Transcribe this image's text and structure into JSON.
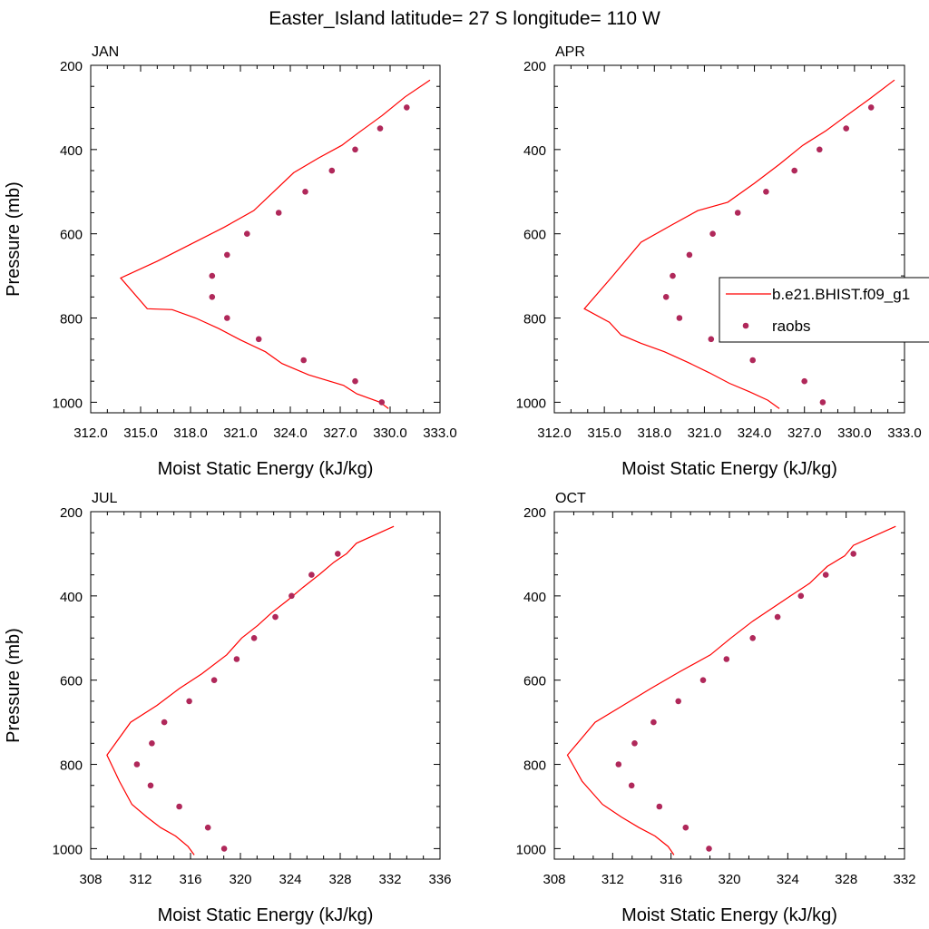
{
  "figure": {
    "title": "Easter_Island  latitude= 27 S longitude= 110 W"
  },
  "legend": {
    "model_label": "b.e21.BHIST.f09_g1",
    "obs_label": "raobs"
  },
  "colors": {
    "model_line": "#ff0000",
    "obs_marker": "#b0285a",
    "axis": "#000000"
  },
  "chart_data": [
    {
      "type": "line",
      "month": "JAN",
      "xlabel": "Moist Static Energy (kJ/kg)",
      "ylabel": "Pressure (mb)",
      "xlim": [
        312,
        333
      ],
      "ylim": [
        1025,
        200
      ],
      "xticks": [
        "312.0",
        "315.0",
        "318.0",
        "321.0",
        "324.0",
        "327.0",
        "330.0",
        "333.0"
      ],
      "yticks": [
        "200",
        "400",
        "600",
        "800",
        "1000"
      ],
      "series": [
        {
          "name": "b.e21.BHIST.f09_g1",
          "x": [
            329.9,
            329.4,
            328.0,
            327.2,
            325.1,
            323.5,
            322.5,
            321.0,
            319.7,
            318.3,
            316.9,
            315.4,
            313.8,
            316.0,
            318.0,
            320.0,
            321.8,
            323.0,
            324.2,
            325.7,
            327.1,
            328.1,
            329.5,
            330.9,
            332.4
          ],
          "y": [
            1015,
            1000,
            980,
            960,
            935,
            908,
            880,
            852,
            825,
            800,
            780,
            778,
            705,
            665,
            625,
            585,
            545,
            500,
            455,
            420,
            390,
            360,
            320,
            275,
            235
          ]
        },
        {
          "name": "raobs",
          "x": [
            329.5,
            327.9,
            324.8,
            322.1,
            320.2,
            319.3,
            319.3,
            320.2,
            321.4,
            323.3,
            324.9,
            326.5,
            327.9,
            329.4,
            331.0
          ],
          "y": [
            1000,
            950,
            900,
            850,
            800,
            750,
            700,
            650,
            600,
            550,
            500,
            450,
            400,
            350,
            300
          ]
        }
      ]
    },
    {
      "type": "line",
      "month": "APR",
      "xlabel": "Moist Static Energy (kJ/kg)",
      "ylabel": "",
      "xlim": [
        312,
        333
      ],
      "ylim": [
        1025,
        200
      ],
      "xticks": [
        "312.0",
        "315.0",
        "318.0",
        "321.0",
        "324.0",
        "327.0",
        "330.0",
        "333.0"
      ],
      "yticks": [
        "200",
        "400",
        "600",
        "800",
        "1000"
      ],
      "series": [
        {
          "name": "b.e21.BHIST.f09_g1",
          "x": [
            325.5,
            324.8,
            323.7,
            322.5,
            321.3,
            320.0,
            318.6,
            317.2,
            316.0,
            315.3,
            313.8,
            315.4,
            317.2,
            319.0,
            320.6,
            322.4,
            324.0,
            325.5,
            326.9,
            328.3,
            329.5,
            330.9,
            332.4
          ],
          "y": [
            1015,
            995,
            975,
            955,
            930,
            905,
            880,
            860,
            840,
            810,
            778,
            705,
            620,
            580,
            545,
            525,
            480,
            435,
            390,
            355,
            320,
            280,
            235
          ]
        },
        {
          "name": "raobs",
          "x": [
            328.1,
            327.0,
            323.9,
            321.4,
            319.5,
            318.7,
            319.1,
            320.1,
            321.5,
            323.0,
            324.7,
            326.4,
            327.9,
            329.5,
            331.0
          ],
          "y": [
            1000,
            950,
            900,
            850,
            800,
            750,
            700,
            650,
            600,
            550,
            500,
            450,
            400,
            350,
            300
          ]
        }
      ]
    },
    {
      "type": "line",
      "month": "JUL",
      "xlabel": "Moist Static Energy (kJ/kg)",
      "ylabel": "Pressure (mb)",
      "xlim": [
        308,
        336
      ],
      "ylim": [
        1025,
        200
      ],
      "xticks": [
        "308",
        "312",
        "316",
        "320",
        "324",
        "328",
        "332",
        "336"
      ],
      "yticks": [
        "200",
        "400",
        "600",
        "800",
        "1000"
      ],
      "series": [
        {
          "name": "b.e21.BHIST.f09_g1",
          "x": [
            316.3,
            315.8,
            314.8,
            313.6,
            312.5,
            311.3,
            310.3,
            309.3,
            311.2,
            313.3,
            315.1,
            316.9,
            318.9,
            320.1,
            321.4,
            322.5,
            323.8,
            325.0,
            326.3,
            327.5,
            328.5,
            329.3,
            332.3
          ],
          "y": [
            1015,
            995,
            970,
            950,
            925,
            895,
            840,
            778,
            700,
            660,
            620,
            585,
            540,
            500,
            470,
            440,
            410,
            380,
            350,
            320,
            300,
            275,
            235
          ]
        },
        {
          "name": "raobs",
          "x": [
            318.7,
            317.4,
            315.1,
            312.8,
            311.7,
            312.9,
            313.9,
            315.9,
            317.9,
            319.7,
            321.1,
            322.8,
            324.1,
            325.7,
            327.8
          ],
          "y": [
            1000,
            950,
            900,
            850,
            800,
            750,
            700,
            650,
            600,
            550,
            500,
            450,
            400,
            350,
            300
          ]
        }
      ]
    },
    {
      "type": "line",
      "month": "OCT",
      "xlabel": "Moist Static Energy (kJ/kg)",
      "ylabel": "",
      "xlim": [
        308,
        332
      ],
      "ylim": [
        1025,
        200
      ],
      "xticks": [
        "308",
        "312",
        "316",
        "320",
        "324",
        "328",
        "332"
      ],
      "yticks": [
        "200",
        "400",
        "600",
        "800",
        "1000"
      ],
      "series": [
        {
          "name": "b.e21.BHIST.f09_g1",
          "x": [
            316.2,
            315.8,
            314.9,
            313.8,
            312.6,
            311.3,
            309.9,
            308.9,
            310.8,
            312.7,
            314.6,
            316.6,
            318.7,
            320.1,
            321.6,
            322.9,
            324.2,
            325.5,
            326.7,
            327.9,
            328.5,
            331.4
          ],
          "y": [
            1015,
            995,
            970,
            950,
            925,
            895,
            840,
            778,
            700,
            660,
            620,
            580,
            540,
            500,
            460,
            430,
            400,
            370,
            330,
            305,
            280,
            235
          ]
        },
        {
          "name": "raobs",
          "x": [
            318.6,
            317.0,
            315.2,
            313.3,
            312.4,
            313.5,
            314.8,
            316.5,
            318.2,
            319.8,
            321.6,
            323.3,
            324.9,
            326.6,
            328.5
          ],
          "y": [
            1000,
            950,
            900,
            850,
            800,
            750,
            700,
            650,
            600,
            550,
            500,
            450,
            400,
            350,
            300
          ]
        }
      ]
    }
  ]
}
